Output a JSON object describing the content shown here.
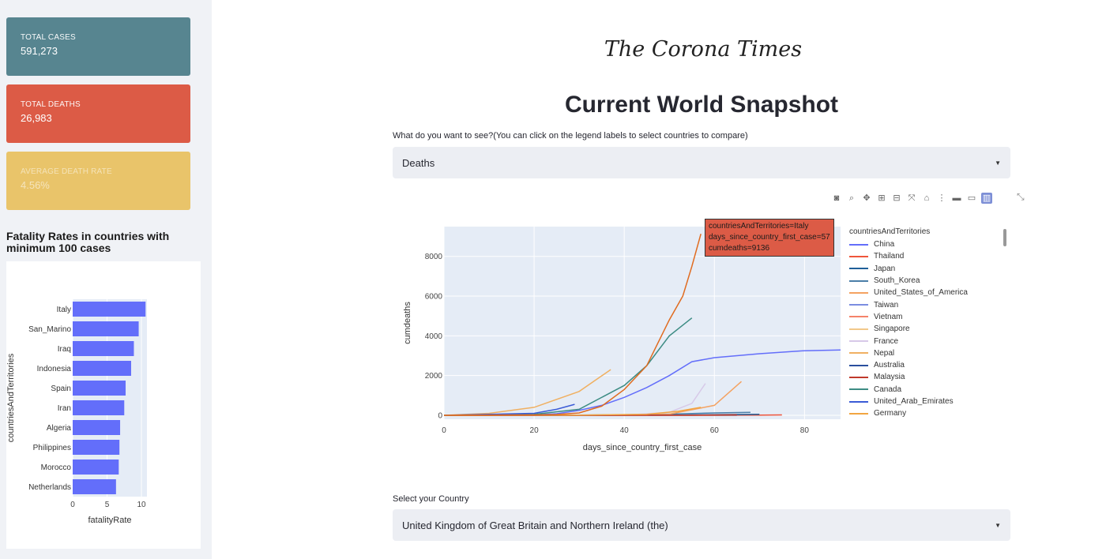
{
  "sidebar": {
    "metrics": {
      "cases": {
        "label": "TOTAL CASES",
        "value": "591,273",
        "color": "#578590"
      },
      "deaths": {
        "label": "TOTAL DEATHS",
        "value": "26,983",
        "color": "#dc5b46"
      },
      "rate": {
        "label": "AVERAGE DEATH RATE",
        "value": "4.56%",
        "color": "#e9c46a"
      }
    },
    "fatality_title": "Fatality Rates in countries with minimum 100 cases"
  },
  "header": {
    "brand": "The Corona Times",
    "title": "Current World Snapshot"
  },
  "controls": {
    "metric_question": "What do you want to see?(You can click on the legend labels to select countries to compare)",
    "metric_selected": "Deaths",
    "country_label": "Select your Country",
    "country_selected": "United Kingdom of Great Britain and Northern Ireland (the)"
  },
  "modebar": {
    "icons": [
      "camera-icon",
      "zoom-icon",
      "pan-icon",
      "zoom-in-icon",
      "zoom-out-icon",
      "autoscale-icon",
      "reset-axes-icon",
      "spike-lines-icon",
      "hover-closest-icon",
      "hover-compare-icon",
      "plotly-logo-icon"
    ],
    "glyphs": [
      "◙",
      "⌕",
      "✥",
      "⊞",
      "⊟",
      "⤧",
      "⌂",
      "⋮",
      "▬",
      "▭",
      "▥"
    ]
  },
  "tooltip": {
    "line1": "countriesAndTerritories=Italy",
    "line2": "days_since_country_first_case=57",
    "line3": "cumdeaths=9136"
  },
  "chart_data": [
    {
      "type": "bar",
      "orientation": "horizontal",
      "categories": [
        "Italy",
        "San_Marino",
        "Iraq",
        "Indonesia",
        "Spain",
        "Iran",
        "Algeria",
        "Philippines",
        "Morocco",
        "Netherlands"
      ],
      "values": [
        10.6,
        9.6,
        8.9,
        8.5,
        7.7,
        7.5,
        6.9,
        6.8,
        6.7,
        6.3
      ],
      "xlabel": "fatalityRate",
      "ylabel": "countriesAndTerritories",
      "xticks": [
        0,
        5,
        10
      ],
      "xlim": [
        0,
        10.8
      ],
      "bar_color": "#636efa"
    },
    {
      "type": "line",
      "xlabel": "days_since_country_first_case",
      "ylabel": "cumdeaths",
      "xticks": [
        0,
        20,
        40,
        60,
        80
      ],
      "yticks": [
        0,
        2000,
        4000,
        6000,
        8000
      ],
      "xlim": [
        0,
        88
      ],
      "ylim": [
        -200,
        9500
      ],
      "legend_title": "countriesAndTerritories",
      "series": [
        {
          "name": "China",
          "color": "#636efa",
          "x": [
            0,
            10,
            20,
            25,
            30,
            35,
            40,
            45,
            50,
            55,
            60,
            70,
            80,
            88
          ],
          "y": [
            0,
            2,
            17,
            80,
            250,
            500,
            900,
            1400,
            2000,
            2700,
            2900,
            3100,
            3250,
            3290
          ]
        },
        {
          "name": "Thailand",
          "color": "#EF553B",
          "x": [
            0,
            30,
            40,
            50,
            60,
            70,
            75
          ],
          "y": [
            0,
            0,
            0,
            1,
            1,
            10,
            20
          ]
        },
        {
          "name": "Japan",
          "color": "#1f5f99",
          "x": [
            0,
            30,
            40,
            50,
            60,
            70
          ],
          "y": [
            0,
            2,
            5,
            10,
            30,
            50
          ]
        },
        {
          "name": "South_Korea",
          "color": "#4a7ea8",
          "x": [
            0,
            30,
            40,
            50,
            55,
            60,
            68
          ],
          "y": [
            0,
            10,
            30,
            60,
            90,
            120,
            150
          ]
        },
        {
          "name": "United_States_of_America",
          "color": "#f4a261",
          "x": [
            0,
            30,
            40,
            50,
            60,
            66
          ],
          "y": [
            0,
            0,
            10,
            60,
            500,
            1700
          ]
        },
        {
          "name": "Taiwan",
          "color": "#7b8de0",
          "x": [
            0,
            30,
            50,
            65
          ],
          "y": [
            0,
            1,
            2,
            5
          ]
        },
        {
          "name": "Vietnam",
          "color": "#f5836a",
          "x": [
            0,
            40,
            65
          ],
          "y": [
            0,
            0,
            0
          ]
        },
        {
          "name": "Singapore",
          "color": "#f2c88a",
          "x": [
            0,
            40,
            64
          ],
          "y": [
            0,
            0,
            2
          ]
        },
        {
          "name": "France",
          "color": "#d7c9e8",
          "x": [
            0,
            20,
            30,
            40,
            50,
            55,
            58
          ],
          "y": [
            0,
            1,
            2,
            10,
            150,
            600,
            1600
          ]
        },
        {
          "name": "Nepal",
          "color": "#f0b062",
          "x": [
            0,
            10,
            20,
            30,
            37
          ],
          "y": [
            0,
            100,
            400,
            1200,
            2300
          ]
        },
        {
          "name": "Australia",
          "color": "#2a4f9e",
          "x": [
            0,
            30,
            50,
            60,
            65
          ],
          "y": [
            0,
            1,
            5,
            10,
            13
          ]
        },
        {
          "name": "Malaysia",
          "color": "#c0392b",
          "x": [
            0,
            40,
            55,
            65
          ],
          "y": [
            0,
            0,
            2,
            23
          ]
        },
        {
          "name": "Canada",
          "color": "#3d8c84",
          "x": [
            0,
            20,
            30,
            40,
            45,
            50,
            55
          ],
          "y": [
            0,
            50,
            300,
            1500,
            2500,
            4000,
            4900
          ]
        },
        {
          "name": "United_Arab_Emirates",
          "color": "#3b5bd6",
          "x": [
            0,
            20,
            25,
            29
          ],
          "y": [
            0,
            100,
            300,
            550
          ]
        },
        {
          "name": "Germany",
          "color": "#f2a541",
          "x": [
            0,
            30,
            45,
            52,
            57
          ],
          "y": [
            0,
            5,
            50,
            200,
            400
          ]
        },
        {
          "name": "Italy",
          "color": "#e06b1f",
          "x": [
            0,
            20,
            25,
            30,
            35,
            40,
            45,
            50,
            53,
            55,
            57
          ],
          "y": [
            0,
            20,
            40,
            120,
            460,
            1300,
            2500,
            4800,
            6000,
            7500,
            9136
          ]
        }
      ]
    }
  ]
}
